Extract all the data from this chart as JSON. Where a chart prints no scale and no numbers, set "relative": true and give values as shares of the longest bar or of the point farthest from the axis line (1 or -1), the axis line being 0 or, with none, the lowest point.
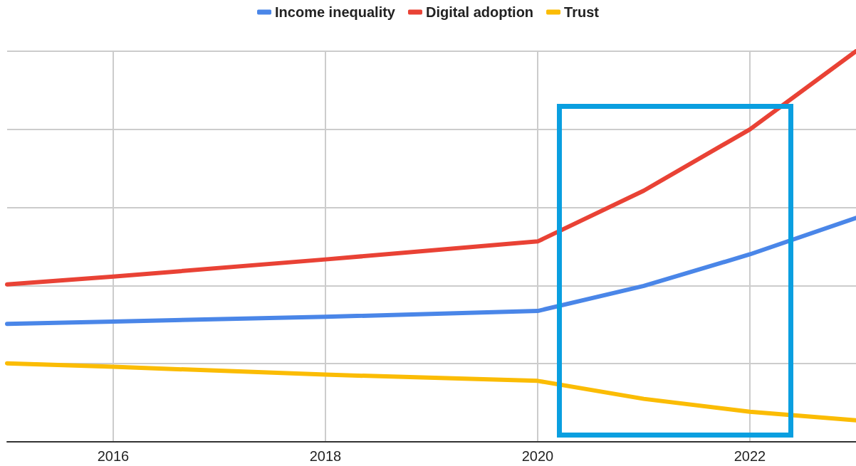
{
  "chart_data": {
    "type": "line",
    "relative": true,
    "x": [
      2015,
      2016,
      2018,
      2020,
      2021,
      2022,
      2023
    ],
    "xlim": [
      2015,
      2023
    ],
    "xticks": [
      2016,
      2018,
      2020,
      2022
    ],
    "grid": true,
    "legend": "top",
    "marker": "none",
    "line_style": "solid",
    "series": [
      {
        "name": "Income inequality",
        "color": "#4a86e8",
        "values": [
          0.302,
          0.308,
          0.32,
          0.335,
          0.399,
          0.48,
          0.573
        ]
      },
      {
        "name": "Digital adoption",
        "color": "#e94235",
        "values": [
          0.403,
          0.423,
          0.467,
          0.513,
          0.643,
          0.8,
          1
        ]
      },
      {
        "name": "Trust",
        "color": "#fbbc04",
        "values": [
          0.201,
          0.192,
          0.172,
          0.156,
          0.11,
          0.077,
          0.055
        ]
      }
    ]
  }
}
